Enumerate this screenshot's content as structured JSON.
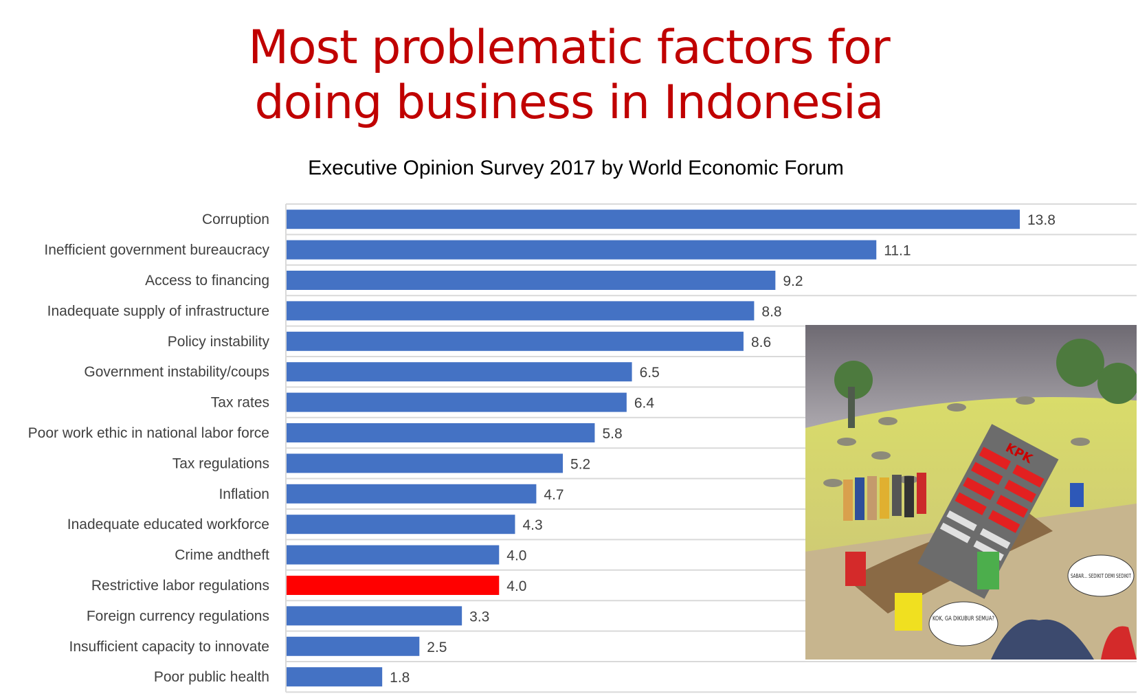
{
  "title_line1": "Most problematic factors for",
  "title_line2": "doing business in Indonesia",
  "subtitle": "Executive Opinion Survey 2017 by World Economic Forum",
  "colors": {
    "title": "#c00000",
    "bar": "#4472c4",
    "highlight": "#ff0000",
    "grid": "#d9d9d9"
  },
  "chart_data": {
    "type": "bar",
    "orientation": "horizontal",
    "title": "Most problematic factors for doing business in Indonesia",
    "subtitle": "Executive Opinion Survey 2017 by World Economic Forum",
    "categories": [
      "Corruption",
      "Inefficient government bureaucracy",
      "Access to financing",
      "Inadequate supply of infrastructure",
      "Policy instability",
      "Government instability/coups",
      "Tax rates",
      "Poor work ethic in national labor force",
      "Tax regulations",
      "Inflation",
      "Inadequate educated workforce",
      "Crime andtheft",
      "Restrictive labor regulations",
      "Foreign currency regulations",
      "Insufficient capacity to innovate",
      "Poor public health"
    ],
    "values": [
      13.8,
      11.1,
      9.2,
      8.8,
      8.6,
      6.5,
      6.4,
      5.8,
      5.2,
      4.7,
      4.3,
      4.0,
      4.0,
      3.3,
      2.5,
      1.8
    ],
    "value_labels": [
      "13.8",
      "11.1",
      "9.2",
      "8.8",
      "8.6",
      "6.5",
      "6.4",
      "5.8",
      "5.2",
      "4.7",
      "4.3",
      "4.0",
      "4.0",
      "3.3",
      "2.5",
      "1.8"
    ],
    "highlighted_category": "Restrictive labor regulations",
    "xlim": [
      0,
      16
    ],
    "grid": true,
    "legend": "none"
  },
  "cartoon": {
    "speech_bubble_1": "KOK, GA DIKUBUR SEMUA?",
    "speech_bubble_2": "SABAR... SEDIKIT DEMI SEDIKIT",
    "building_sign": "KPK"
  }
}
